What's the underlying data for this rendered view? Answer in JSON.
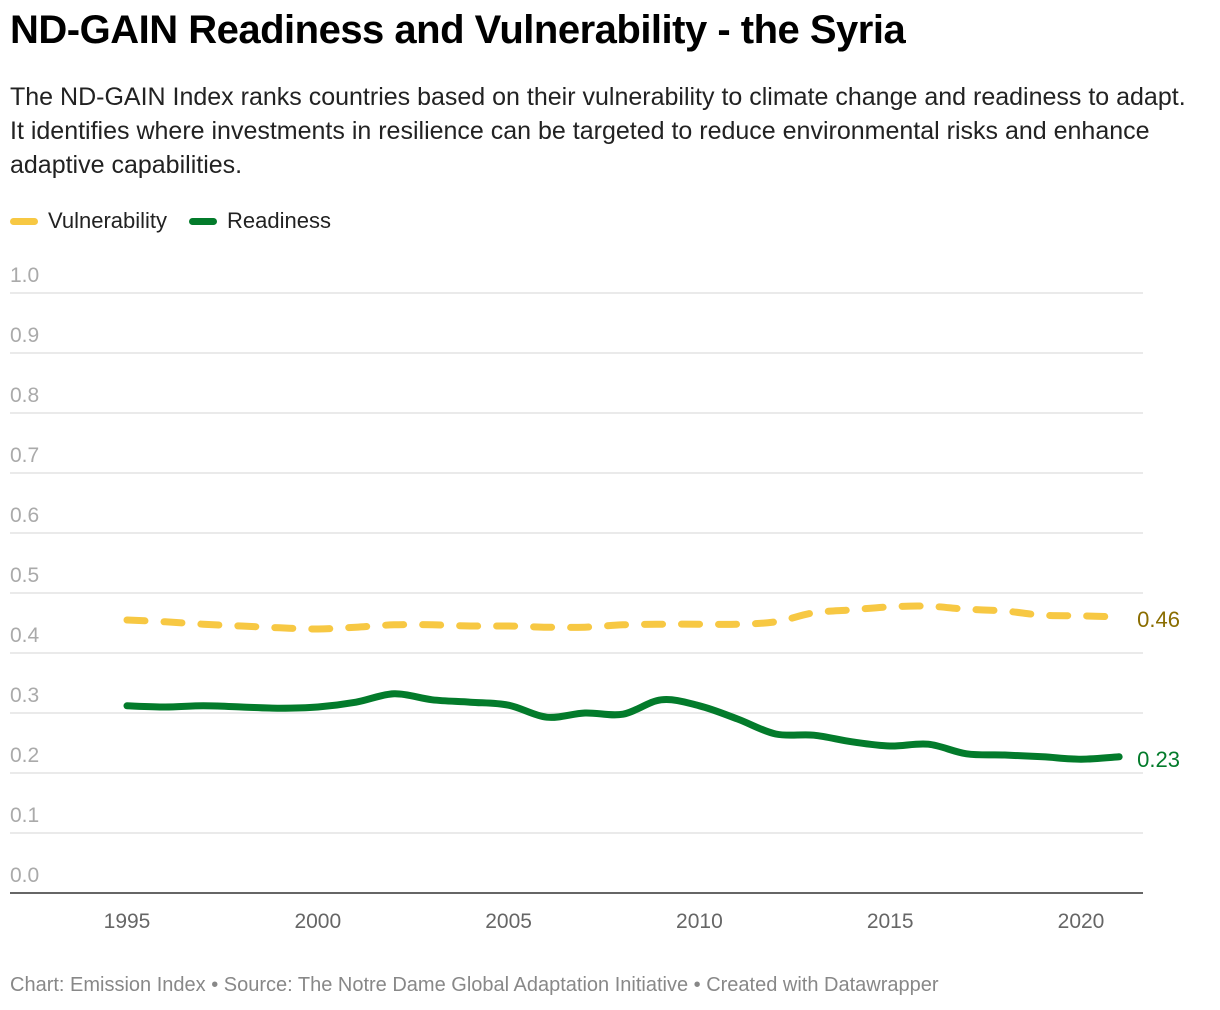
{
  "title": "ND-GAIN Readiness and Vulnerability - the Syria",
  "subtitle": "The ND-GAIN Index ranks countries based on their vulnerability to climate change and readiness to adapt. It identifies where investments in resilience can be targeted to reduce environmental risks and enhance adaptive capabilities.",
  "footer": "Chart: Emission Index • Source: The Notre Dame Global Adaptation Initiative • Created with Datawrapper",
  "chart_data": {
    "type": "line",
    "xlim": [
      1995,
      2021
    ],
    "ylim": [
      0,
      1
    ],
    "grid": true,
    "legend": "top-left",
    "x_ticks": [
      "1995",
      "2000",
      "2005",
      "2010",
      "2015",
      "2020"
    ],
    "y_ticks": [
      "0.0",
      "0.1",
      "0.2",
      "0.3",
      "0.4",
      "0.5",
      "0.6",
      "0.7",
      "0.8",
      "0.9",
      "1.0"
    ],
    "x": [
      1995,
      1996,
      1997,
      1998,
      1999,
      2000,
      2001,
      2002,
      2003,
      2004,
      2005,
      2006,
      2007,
      2008,
      2009,
      2010,
      2011,
      2012,
      2013,
      2014,
      2015,
      2016,
      2017,
      2018,
      2019,
      2020,
      2021
    ],
    "series": [
      {
        "name": "Vulnerability",
        "color": "#f7c843",
        "style": "dashed",
        "end_label": "0.46",
        "label_color": "#8a6d00",
        "values": [
          0.455,
          0.452,
          0.448,
          0.445,
          0.442,
          0.44,
          0.443,
          0.447,
          0.447,
          0.445,
          0.445,
          0.443,
          0.443,
          0.447,
          0.448,
          0.448,
          0.448,
          0.452,
          0.467,
          0.472,
          0.477,
          0.478,
          0.473,
          0.47,
          0.463,
          0.462,
          0.46
        ]
      },
      {
        "name": "Readiness",
        "color": "#037b2b",
        "style": "solid",
        "end_label": "0.23",
        "label_color": "#037b2b",
        "values": [
          0.312,
          0.31,
          0.312,
          0.31,
          0.308,
          0.31,
          0.318,
          0.332,
          0.322,
          0.318,
          0.313,
          0.293,
          0.3,
          0.298,
          0.322,
          0.312,
          0.29,
          0.265,
          0.263,
          0.252,
          0.245,
          0.248,
          0.232,
          0.23,
          0.227,
          0.223,
          0.227
        ]
      }
    ]
  }
}
